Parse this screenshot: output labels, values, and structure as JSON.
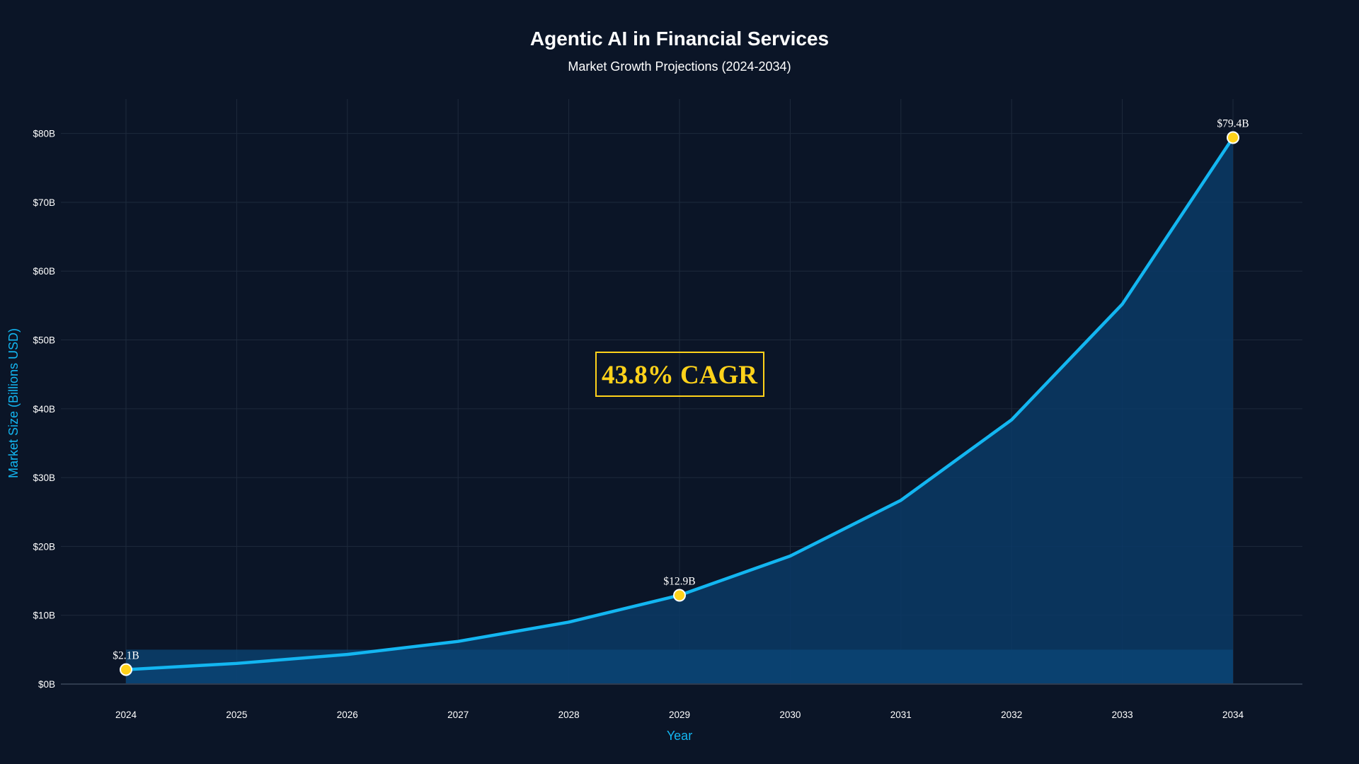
{
  "chart_data": {
    "type": "area",
    "title": "Agentic AI in Financial Services",
    "subtitle": "Market Growth Projections (2024-2034)",
    "xlabel": "Year",
    "ylabel": "Market Size (Billions USD)",
    "x": [
      "2024",
      "2025",
      "2026",
      "2027",
      "2028",
      "2029",
      "2030",
      "2031",
      "2032",
      "2033",
      "2034"
    ],
    "series": [
      {
        "values": [
          2.1,
          3.0,
          4.3,
          6.2,
          9.0,
          12.9,
          18.6,
          26.7,
          38.4,
          55.2,
          79.4
        ]
      }
    ],
    "baseline_band": 5,
    "ylim": [
      0,
      85
    ],
    "yticks": [
      0,
      10,
      20,
      30,
      40,
      50,
      60,
      70,
      80
    ],
    "ytick_labels": [
      "$0B",
      "$10B",
      "$20B",
      "$30B",
      "$40B",
      "$50B",
      "$60B",
      "$70B",
      "$80B"
    ],
    "data_labels": [
      {
        "x": "2024",
        "value": 2.1,
        "text": "$2.1B"
      },
      {
        "x": "2029",
        "value": 12.9,
        "text": "$12.9B"
      },
      {
        "x": "2034",
        "value": 79.4,
        "text": "$79.4B"
      }
    ],
    "annotation": {
      "text": "43.8% CAGR",
      "x": "2029",
      "y": 45
    },
    "grid": true,
    "legend": "none"
  },
  "colors": {
    "background": "#0b1527",
    "line": "#13b6f1",
    "area_fill": "#0a3a66",
    "band_fill": "#0b4677",
    "grid": "#1e2a3c",
    "axis_title": "#13b6f1",
    "marker": "#ffd21a",
    "annotation": "#ffd21a",
    "text": "#ffffff"
  }
}
